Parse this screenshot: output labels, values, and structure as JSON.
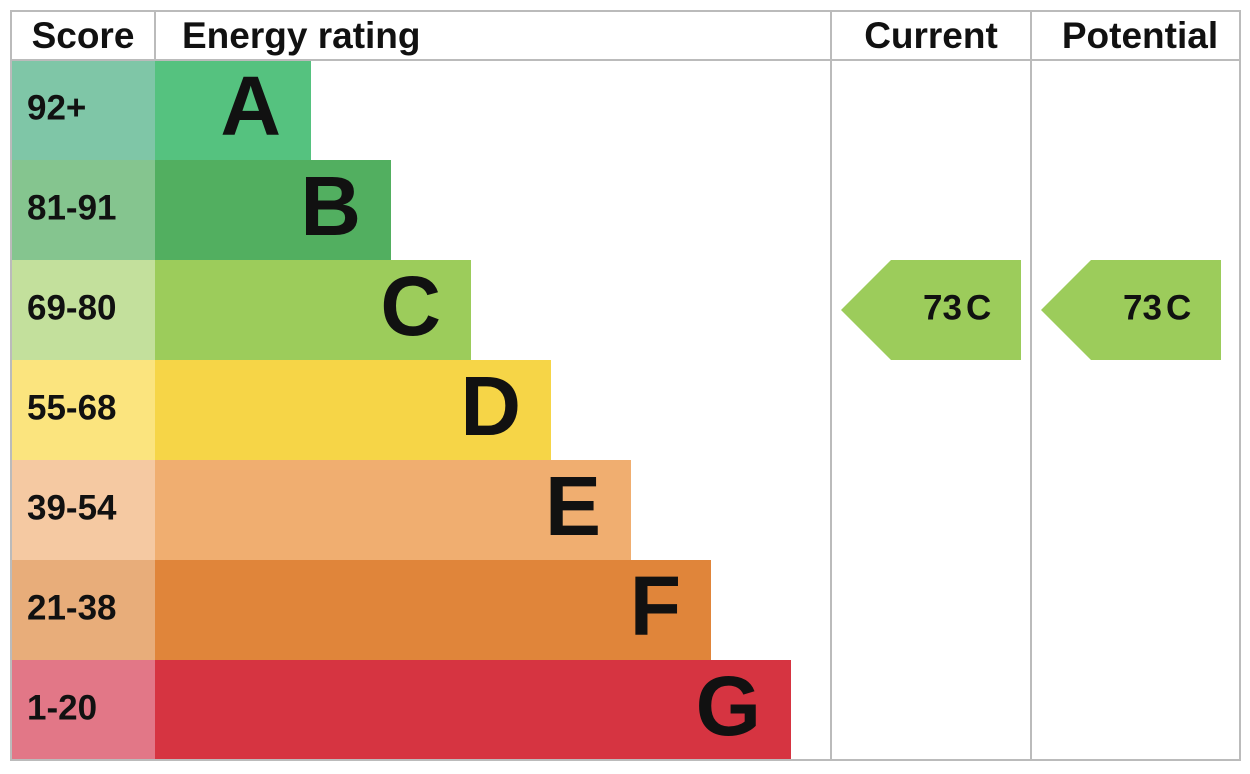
{
  "headers": {
    "score": "Score",
    "rating": "Energy rating",
    "current": "Current",
    "potential": "Potential"
  },
  "bands": [
    {
      "score": "92+",
      "letter": "A",
      "color": "#55c27f",
      "score_color": "#7fc6a7"
    },
    {
      "score": "81-91",
      "letter": "B",
      "color": "#52af60",
      "score_color": "#85c58f"
    },
    {
      "score": "69-80",
      "letter": "C",
      "color": "#9ccc5b",
      "score_color": "#c3e09c"
    },
    {
      "score": "55-68",
      "letter": "D",
      "color": "#f6d547",
      "score_color": "#fbe47e"
    },
    {
      "score": "39-54",
      "letter": "E",
      "color": "#f0ae70",
      "score_color": "#f5c9a2"
    },
    {
      "score": "21-38",
      "letter": "F",
      "color": "#e0853a",
      "score_color": "#e8ad7a"
    },
    {
      "score": "1-20",
      "letter": "G",
      "color": "#d63441",
      "score_color": "#e27787"
    }
  ],
  "current": {
    "value": 73,
    "letter": "C"
  },
  "potential": {
    "value": 73,
    "letter": "C"
  }
}
